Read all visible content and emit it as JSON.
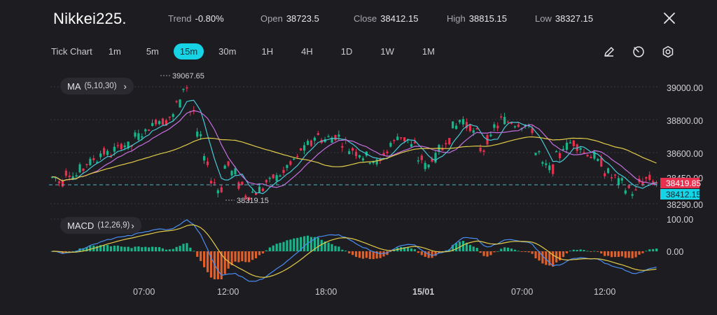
{
  "header": {
    "title": "Nikkei225.",
    "stats": [
      {
        "label": "Trend",
        "value": "-0.80%"
      },
      {
        "label": "Open",
        "value": "38723.5"
      },
      {
        "label": "Close",
        "value": "38412.15"
      },
      {
        "label": "High",
        "value": "38815.15"
      },
      {
        "label": "Low",
        "value": "38327.15"
      }
    ]
  },
  "toolbar": {
    "tick_chart_label": "Tick Chart",
    "intervals": [
      "1m",
      "5m",
      "15m",
      "30m",
      "1H",
      "4H",
      "1D",
      "1W",
      "1M"
    ],
    "active_interval": "15m",
    "tools": [
      "pencil-icon",
      "clock-icon",
      "settings-icon"
    ]
  },
  "indicators": {
    "ma": {
      "label": "MA",
      "params": "(5,10,30)"
    },
    "macd": {
      "label": "MACD",
      "params": "(12,26,9)"
    }
  },
  "colors": {
    "up": "#19b48a",
    "down": "#e8304f",
    "ma5": "#49c9d8",
    "ma10": "#c66fe0",
    "ma30": "#e3cc4a",
    "accent": "#16d3e6",
    "macd_down": "#e0602c",
    "macd_up": "#19b48a",
    "macd_line": "#4a8df0",
    "signal_line": "#e3cc4a"
  },
  "chart_data": {
    "type": "candlestick",
    "y_axis": {
      "ticks": [
        "39000.00",
        "38800.00",
        "38600.00",
        "38450.00",
        "38290.00"
      ],
      "ylim": [
        38250,
        39100
      ]
    },
    "macd_axis": {
      "ticks": [
        "100.00",
        "0.00"
      ]
    },
    "x_axis": {
      "ticks": [
        "07:00",
        "12:00",
        "18:00",
        "15/01",
        "07:00",
        "12:00"
      ]
    },
    "price_badges": {
      "last": "38419.85",
      "close": "38412.15"
    },
    "annotations": {
      "high": "39067.65",
      "low": "38319.15"
    },
    "close_path": [
      38450,
      38420,
      38480,
      38460,
      38500,
      38540,
      38560,
      38600,
      38590,
      38620,
      38650,
      38640,
      38700,
      38720,
      38760,
      38800,
      38790,
      38820,
      38900,
      39000,
      38850,
      38700,
      38550,
      38420,
      38380,
      38520,
      38480,
      38400,
      38340,
      38360,
      38380,
      38420,
      38450,
      38470,
      38520,
      38560,
      38620,
      38650,
      38700,
      38680,
      38690,
      38700,
      38660,
      38620,
      38600,
      38580,
      38560,
      38540,
      38600,
      38660,
      38700,
      38680,
      38640,
      38560,
      38520,
      38570,
      38620,
      38680,
      38760,
      38800,
      38760,
      38720,
      38620,
      38680,
      38760,
      38800,
      38790,
      38780,
      38770,
      38740,
      38600,
      38520,
      38500,
      38580,
      38640,
      38660,
      38640,
      38600,
      38580,
      38540,
      38480,
      38450,
      38420,
      38380,
      38360,
      38420,
      38440,
      38420
    ]
  }
}
